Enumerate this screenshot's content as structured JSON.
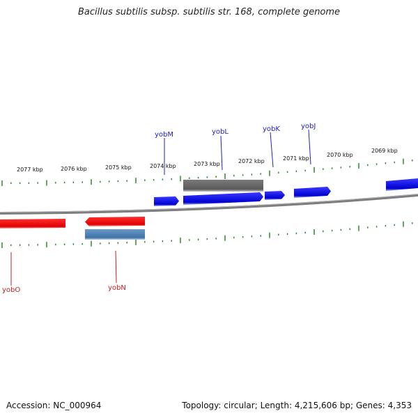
{
  "title": "Bacillus subtilis subsp. subtilis str. 168, complete genome",
  "footer": {
    "accession_label": "Accession:",
    "accession": "NC_000964",
    "topology_label": "Topology:",
    "topology": "circular",
    "length_label": "Length:",
    "length": "4,215,606 bp",
    "genes_label": "Genes:",
    "genes": "4,353"
  },
  "colors": {
    "backbone": "#8c8c8c",
    "tick": "#2a8a2a",
    "forward_gene": "#1010e0",
    "reverse_gene": "#e01010",
    "gray_feature": "#6a6a6a",
    "steel_feature": "#4f82b4",
    "forward_label": "#2020c0",
    "reverse_label": "#c02020"
  },
  "scale": {
    "labels": [
      "2077 kbp",
      "2076 kbp",
      "2075 kbp",
      "2074 kbp",
      "2073 kbp",
      "2072 kbp",
      "2071 kbp",
      "2070 kbp",
      "2069 kbp"
    ]
  },
  "genes": {
    "forward": [
      {
        "name": "yobM"
      },
      {
        "name": "yobL"
      },
      {
        "name": "yobK"
      },
      {
        "name": "yobJ"
      }
    ],
    "reverse": [
      {
        "name": "yobO"
      },
      {
        "name": "yobN"
      }
    ]
  }
}
